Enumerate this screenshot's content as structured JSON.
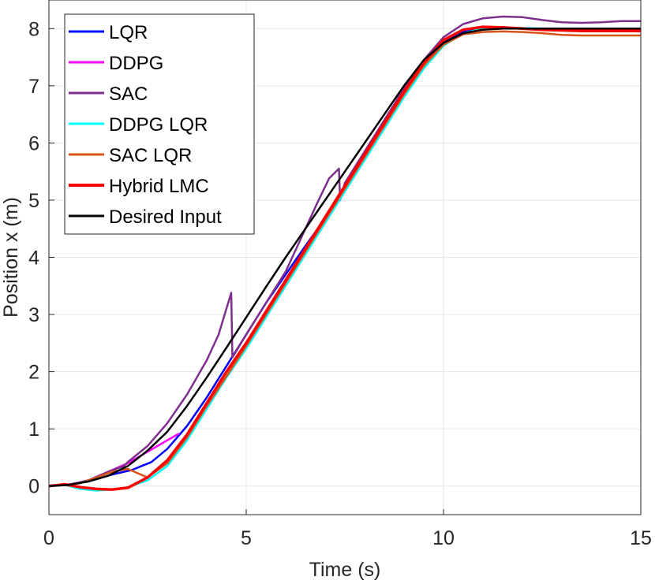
{
  "chart_data": {
    "type": "line",
    "title": "",
    "xlabel": "Time (s)",
    "ylabel": "Position x (m)",
    "xlim": [
      0,
      15
    ],
    "ylim": [
      -0.5,
      8.5
    ],
    "xticks": [
      0,
      5,
      10,
      15
    ],
    "yticks": [
      0,
      1,
      2,
      3,
      4,
      5,
      6,
      7,
      8
    ],
    "xtick_labels": [
      "0",
      "5",
      "10",
      "15"
    ],
    "ytick_labels": [
      "0",
      "1",
      "2",
      "3",
      "4",
      "5",
      "6",
      "7",
      "8"
    ],
    "grid": true,
    "legend_position": "top-left",
    "series": [
      {
        "name": "LQR",
        "color": "#0000ff",
        "x": [
          0,
          0.4,
          1.0,
          1.6,
          2.1,
          2.6,
          3.0,
          3.5,
          4.0,
          4.5,
          5.0,
          5.5,
          6.0,
          6.5,
          7.0,
          7.3,
          7.5,
          8.0,
          8.5,
          9.0,
          9.5,
          10.0,
          10.5,
          11.0,
          11.5,
          12.0,
          12.5,
          13.0,
          14.0,
          15.0
        ],
        "y": [
          0,
          0.02,
          0.08,
          0.2,
          0.28,
          0.42,
          0.65,
          1.05,
          1.55,
          2.1,
          2.65,
          3.2,
          3.7,
          4.2,
          4.68,
          5.0,
          5.2,
          5.75,
          6.3,
          6.85,
          7.38,
          7.75,
          7.95,
          8.0,
          8.0,
          8.0,
          8.0,
          8.0,
          8.0,
          8.0
        ]
      },
      {
        "name": "DDPG",
        "color": "#ff00ff",
        "x": [
          0,
          0.5,
          1.0,
          1.5,
          2.0,
          2.5,
          3.0,
          3.3
        ],
        "y": [
          0,
          0.02,
          0.1,
          0.25,
          0.4,
          0.6,
          0.8,
          0.92
        ]
      },
      {
        "name": "SAC",
        "color": "#7e2f8e",
        "x": [
          0,
          0.5,
          1.0,
          1.5,
          1.9,
          2.0,
          2.5,
          3.0,
          3.5,
          4.0,
          4.3,
          4.62,
          4.65,
          5.0,
          5.5,
          6.0,
          6.4,
          6.8,
          7.1,
          7.35,
          7.38,
          7.5,
          8.0,
          8.5,
          9.0,
          9.5,
          10.0,
          10.5,
          11.0,
          11.5,
          12.0,
          12.5,
          13.0,
          13.5,
          14.0,
          14.5,
          15.0
        ],
        "y": [
          0,
          0.02,
          0.1,
          0.25,
          0.35,
          0.42,
          0.7,
          1.1,
          1.6,
          2.2,
          2.65,
          3.38,
          2.25,
          2.65,
          3.2,
          3.75,
          4.35,
          4.95,
          5.38,
          5.55,
          5.0,
          5.3,
          5.85,
          6.4,
          6.95,
          7.45,
          7.85,
          8.08,
          8.18,
          8.21,
          8.2,
          8.15,
          8.11,
          8.1,
          8.11,
          8.13,
          8.13
        ]
      },
      {
        "name": "DDPG LQR",
        "color": "#00ffff",
        "x": [
          0,
          0.4,
          0.8,
          1.2,
          1.6,
          2.0,
          2.5,
          3.0,
          3.5,
          4.0,
          4.5,
          5.0,
          5.5,
          6.0,
          6.5,
          7.0,
          7.5,
          8.0,
          8.5,
          9.0,
          9.5,
          10.0,
          10.5,
          11.0,
          11.5,
          12.0,
          12.5,
          13.0,
          14.0,
          15.0
        ],
        "y": [
          0,
          0.02,
          -0.05,
          -0.08,
          -0.06,
          -0.02,
          0.1,
          0.35,
          0.8,
          1.35,
          1.9,
          2.4,
          2.95,
          3.5,
          4.05,
          4.6,
          5.15,
          5.7,
          6.25,
          6.8,
          7.3,
          7.7,
          7.92,
          8.0,
          8.02,
          8.01,
          8.0,
          8.0,
          8.0,
          8.0
        ]
      },
      {
        "name": "SAC LQR",
        "color": "#d95319",
        "x": [
          0,
          0.4,
          0.8,
          1.2,
          1.6,
          2.0,
          2.5,
          3.0,
          3.5,
          4.0,
          4.5,
          5.0,
          5.5,
          6.0,
          6.5,
          7.0,
          7.5,
          8.0,
          8.5,
          9.0,
          9.5,
          10.0,
          10.5,
          11.0,
          11.5,
          12.0,
          12.5,
          13.0,
          13.5,
          14.0,
          14.5,
          15.0
        ],
        "y": [
          0,
          0.02,
          0.05,
          0.15,
          0.25,
          0.3,
          0.15,
          0.4,
          0.85,
          1.4,
          1.92,
          2.45,
          3.0,
          3.55,
          4.1,
          4.65,
          5.2,
          5.75,
          6.3,
          6.85,
          7.35,
          7.72,
          7.9,
          7.94,
          7.95,
          7.94,
          7.92,
          7.89,
          7.88,
          7.88,
          7.88,
          7.88
        ]
      },
      {
        "name": "Hybrid LMC",
        "color": "#ff0000",
        "x": [
          0,
          0.4,
          0.8,
          1.2,
          1.6,
          2.0,
          2.5,
          3.0,
          3.5,
          4.0,
          4.5,
          5.0,
          5.5,
          6.0,
          6.5,
          7.0,
          7.5,
          8.0,
          8.5,
          9.0,
          9.5,
          10.0,
          10.5,
          11.0,
          11.5,
          12.0,
          12.5,
          13.0,
          13.5,
          14.0,
          14.5,
          15.0
        ],
        "y": [
          0,
          0.03,
          -0.02,
          -0.05,
          -0.06,
          -0.03,
          0.15,
          0.45,
          0.9,
          1.45,
          2.0,
          2.5,
          3.05,
          3.6,
          4.15,
          4.7,
          5.25,
          5.8,
          6.35,
          6.9,
          7.4,
          7.8,
          7.98,
          8.03,
          8.02,
          8.0,
          7.98,
          7.97,
          7.96,
          7.96,
          7.96,
          7.96
        ]
      },
      {
        "name": "Desired Input",
        "color": "#000000",
        "x": [
          0,
          0.5,
          1.0,
          1.5,
          2.0,
          2.5,
          3.0,
          3.5,
          4.0,
          4.5,
          5.0,
          5.5,
          6.0,
          6.5,
          7.0,
          7.5,
          8.0,
          8.5,
          9.0,
          9.5,
          10.0,
          10.5,
          11.0,
          11.5,
          12.0,
          12.5,
          13.0,
          14.0,
          15.0
        ],
        "y": [
          0,
          0.02,
          0.08,
          0.18,
          0.35,
          0.62,
          0.95,
          1.4,
          1.9,
          2.42,
          2.95,
          3.48,
          4.0,
          4.5,
          5.0,
          5.5,
          6.0,
          6.5,
          7.0,
          7.45,
          7.75,
          7.92,
          7.98,
          8.0,
          8.0,
          8.0,
          8.0,
          8.0,
          8.0
        ]
      }
    ]
  }
}
